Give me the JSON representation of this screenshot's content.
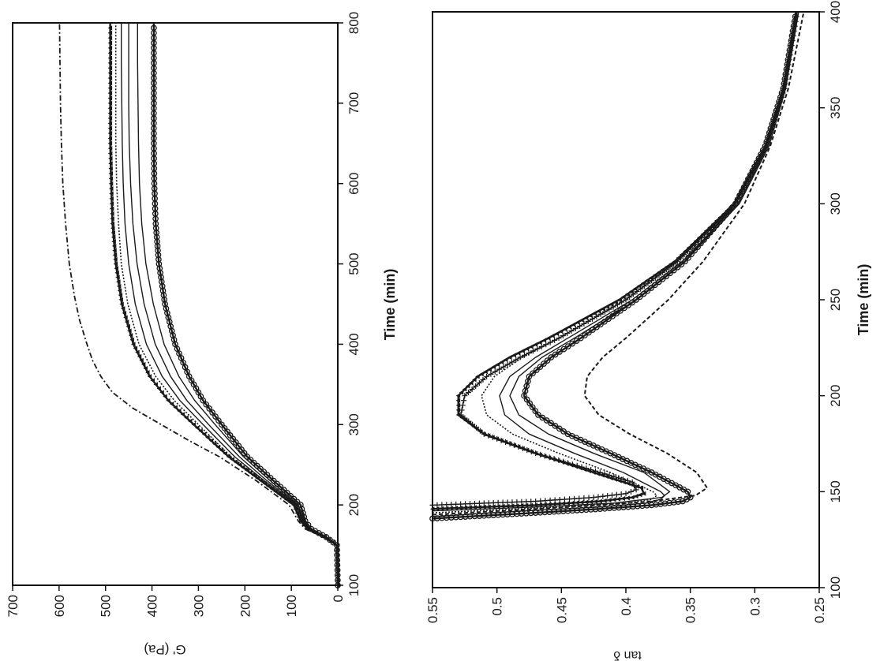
{
  "chart_data": [
    {
      "type": "line",
      "name": "storage-modulus-panel",
      "xlabel": "Time (min)",
      "ylabel": "G' (Pa)",
      "xlim": [
        100,
        800
      ],
      "ylim": [
        0,
        700
      ],
      "xticks": [
        "100",
        "200",
        "300",
        "400",
        "500",
        "600",
        "700",
        "800"
      ],
      "yticks": [
        "0",
        "100",
        "200",
        "300",
        "400",
        "500",
        "600",
        "700"
      ],
      "grid": false,
      "legend": "none",
      "orientation": "rotated 90° counter-clockwise",
      "series": [
        {
          "style": "dash-dot",
          "x": [
            100,
            150,
            160,
            170,
            180,
            200,
            230,
            260,
            280,
            300,
            320,
            340,
            360,
            380,
            400,
            430,
            460,
            500,
            550,
            600,
            650,
            700,
            750,
            800
          ],
          "values": [
            0,
            2,
            30,
            70,
            85,
            105,
            175,
            255,
            320,
            380,
            440,
            485,
            510,
            528,
            540,
            556,
            567,
            578,
            586,
            592,
            595,
            597,
            598,
            599
          ]
        },
        {
          "style": "triangles",
          "x": [
            100,
            150,
            160,
            170,
            180,
            200,
            230,
            260,
            300,
            330,
            360,
            400,
            450,
            500,
            550,
            600,
            650,
            700,
            750,
            800
          ],
          "values": [
            0,
            2,
            28,
            65,
            80,
            95,
            165,
            235,
            310,
            365,
            405,
            440,
            465,
            478,
            485,
            488,
            490,
            490,
            490,
            490
          ]
        },
        {
          "style": "dotted",
          "x": [
            100,
            150,
            160,
            170,
            180,
            200,
            230,
            260,
            300,
            330,
            360,
            400,
            450,
            500,
            550,
            600,
            650,
            700,
            750,
            800
          ],
          "values": [
            0,
            2,
            28,
            63,
            78,
            92,
            160,
            230,
            300,
            352,
            392,
            428,
            452,
            466,
            472,
            476,
            478,
            478,
            478,
            478
          ]
        },
        {
          "style": "solid",
          "x": [
            100,
            150,
            160,
            170,
            180,
            200,
            230,
            260,
            300,
            330,
            360,
            400,
            450,
            500,
            550,
            600,
            650,
            700,
            750,
            800
          ],
          "values": [
            0,
            2,
            27,
            62,
            76,
            90,
            158,
            222,
            290,
            340,
            378,
            412,
            436,
            450,
            458,
            462,
            464,
            465,
            466,
            466
          ]
        },
        {
          "style": "solid",
          "x": [
            100,
            150,
            160,
            170,
            180,
            200,
            230,
            260,
            300,
            330,
            360,
            400,
            450,
            500,
            550,
            600,
            650,
            700,
            750,
            800
          ],
          "values": [
            0,
            2,
            26,
            60,
            74,
            88,
            152,
            212,
            278,
            325,
            360,
            393,
            417,
            432,
            441,
            446,
            449,
            450,
            450,
            450
          ]
        },
        {
          "style": "solid",
          "x": [
            100,
            150,
            160,
            170,
            180,
            200,
            230,
            260,
            300,
            330,
            360,
            400,
            450,
            500,
            550,
            600,
            650,
            700,
            750,
            800
          ],
          "values": [
            0,
            2,
            25,
            58,
            72,
            85,
            145,
            203,
            264,
            308,
            342,
            374,
            397,
            413,
            422,
            427,
            429,
            430,
            431,
            431
          ]
        },
        {
          "style": "circles",
          "x": [
            100,
            150,
            160,
            170,
            180,
            200,
            230,
            260,
            300,
            330,
            360,
            400,
            450,
            500,
            550,
            600,
            650,
            700,
            750,
            800
          ],
          "values": [
            0,
            2,
            25,
            57,
            70,
            80,
            138,
            195,
            250,
            290,
            320,
            350,
            372,
            385,
            392,
            395,
            396,
            396,
            396,
            396
          ]
        }
      ]
    },
    {
      "type": "line",
      "name": "loss-tangent-panel",
      "xlabel": "Time (min)",
      "ylabel": "tan δ",
      "xlim": [
        100,
        400
      ],
      "ylim": [
        0.25,
        0.55
      ],
      "xticks": [
        "100",
        "150",
        "200",
        "250",
        "300",
        "350",
        "400"
      ],
      "yticks": [
        "0.25",
        "0.3",
        "0.35",
        "0.4",
        "0.45",
        "0.5",
        "0.55"
      ],
      "grid": false,
      "legend": "none",
      "orientation": "rotated 90° counter-clockwise",
      "series": [
        {
          "style": "dashed",
          "x": [
            138,
            141,
            143,
            145,
            148,
            152,
            160,
            170,
            180,
            190,
            200,
            210,
            220,
            230,
            250,
            270,
            300,
            330,
            360,
            400
          ],
          "values": [
            0.55,
            0.47,
            0.42,
            0.38,
            0.346,
            0.337,
            0.345,
            0.368,
            0.397,
            0.421,
            0.432,
            0.43,
            0.418,
            0.4,
            0.367,
            0.34,
            0.308,
            0.288,
            0.274,
            0.262
          ]
        },
        {
          "style": "circles",
          "x": [
            136,
            139,
            141,
            143,
            145,
            147,
            150,
            160,
            170,
            180,
            190,
            200,
            210,
            220,
            230,
            250,
            270,
            300,
            330,
            360,
            400
          ],
          "values": [
            0.55,
            0.47,
            0.42,
            0.38,
            0.356,
            0.35,
            0.352,
            0.38,
            0.412,
            0.445,
            0.468,
            0.479,
            0.475,
            0.458,
            0.435,
            0.392,
            0.354,
            0.315,
            0.292,
            0.278,
            0.268
          ]
        },
        {
          "style": "solid",
          "x": [
            140,
            142,
            144,
            147,
            150,
            160,
            170,
            180,
            190,
            200,
            210,
            220,
            230,
            250,
            270,
            300,
            330,
            360,
            400
          ],
          "values": [
            0.55,
            0.47,
            0.41,
            0.372,
            0.366,
            0.386,
            0.425,
            0.46,
            0.483,
            0.49,
            0.483,
            0.465,
            0.44,
            0.392,
            0.354,
            0.312,
            0.289,
            0.276,
            0.266
          ]
        },
        {
          "style": "solid",
          "x": [
            137,
            140,
            142,
            144,
            146,
            148,
            150,
            160,
            170,
            180,
            190,
            200,
            210,
            220,
            230,
            250,
            270,
            300,
            330,
            360,
            400
          ],
          "values": [
            0.55,
            0.48,
            0.42,
            0.385,
            0.373,
            0.37,
            0.373,
            0.402,
            0.44,
            0.475,
            0.494,
            0.498,
            0.49,
            0.47,
            0.445,
            0.395,
            0.356,
            0.313,
            0.29,
            0.277,
            0.267
          ]
        },
        {
          "style": "dotted",
          "x": [
            139,
            142,
            144,
            146,
            148,
            150,
            160,
            170,
            180,
            190,
            200,
            210,
            220,
            230,
            250,
            270,
            300,
            330,
            360,
            400
          ],
          "values": [
            0.55,
            0.45,
            0.4,
            0.38,
            0.376,
            0.379,
            0.412,
            0.452,
            0.488,
            0.508,
            0.512,
            0.502,
            0.48,
            0.452,
            0.4,
            0.36,
            0.316,
            0.292,
            0.278,
            0.268
          ]
        },
        {
          "style": "triangles",
          "x": [
            141,
            143,
            145,
            147,
            149,
            152,
            160,
            170,
            180,
            190,
            200,
            210,
            220,
            230,
            250,
            270,
            300,
            330,
            360,
            400
          ],
          "values": [
            0.55,
            0.47,
            0.42,
            0.395,
            0.386,
            0.388,
            0.425,
            0.47,
            0.51,
            0.53,
            0.53,
            0.515,
            0.49,
            0.46,
            0.405,
            0.362,
            0.316,
            0.292,
            0.278,
            0.268
          ]
        },
        {
          "style": "plus",
          "x": [
            143,
            145,
            147,
            149,
            151,
            155,
            160,
            170,
            180,
            190,
            200,
            210,
            220,
            230,
            250,
            270,
            300,
            330,
            360,
            400
          ],
          "values": [
            0.55,
            0.47,
            0.425,
            0.4,
            0.392,
            0.395,
            0.42,
            0.47,
            0.51,
            0.528,
            0.525,
            0.508,
            0.482,
            0.452,
            0.4,
            0.36,
            0.315,
            0.291,
            0.277,
            0.267
          ]
        }
      ]
    }
  ]
}
